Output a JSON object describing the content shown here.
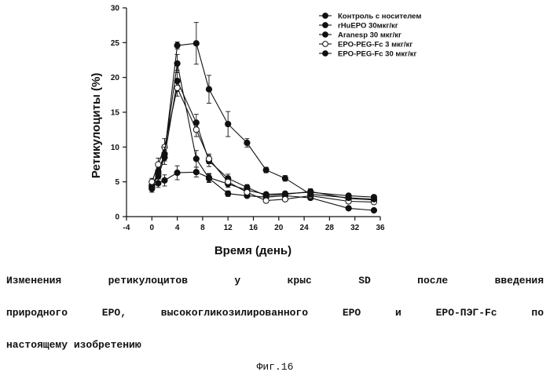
{
  "chart_data": {
    "type": "line",
    "xlabel": "Время (день)",
    "ylabel": "Ретикулоциты (%)",
    "xlim": [
      -4,
      36
    ],
    "ylim": [
      0,
      30
    ],
    "xticks": [
      -4,
      0,
      4,
      8,
      12,
      16,
      20,
      24,
      28,
      32,
      36
    ],
    "yticks": [
      0,
      5,
      10,
      15,
      20,
      25,
      30
    ],
    "legend_position": "top-right",
    "grid": false,
    "series": [
      {
        "name": "Контроль с носителем",
        "marker": "filled-circle",
        "x": [
          0,
          1,
          2,
          4,
          7,
          9,
          12,
          15,
          18,
          21,
          25,
          31,
          35
        ],
        "y": [
          4.3,
          4.8,
          5.2,
          6.3,
          6.4,
          5.6,
          4.7,
          3.8,
          3.2,
          3.3,
          3.5,
          3.0,
          2.8
        ],
        "err": [
          0.5,
          0.6,
          0.8,
          1.0,
          0.7,
          0.6,
          0.5,
          0.4,
          0.3,
          0.3,
          0.4,
          0.3,
          0.3
        ]
      },
      {
        "name": "rHuEPO 30мкг/кг",
        "marker": "filled-circle",
        "x": [
          0,
          1,
          2,
          4,
          7,
          9,
          12,
          15,
          18,
          21,
          25,
          31,
          35
        ],
        "y": [
          4.5,
          5.8,
          8.5,
          19.5,
          13.5,
          8.0,
          5.5,
          4.2,
          3.0,
          3.2,
          3.6,
          2.6,
          2.4
        ],
        "err": [
          0.4,
          0.8,
          1.0,
          1.5,
          1.2,
          0.8,
          0.6,
          0.4,
          0.3,
          0.3,
          0.4,
          0.3,
          0.3
        ]
      },
      {
        "name": "Aranesp 30 мкг/кг",
        "marker": "filled-circle",
        "x": [
          0,
          1,
          2,
          4,
          7,
          9,
          12,
          15,
          18,
          21,
          25,
          31,
          35
        ],
        "y": [
          4.2,
          6.5,
          9.0,
          22.0,
          8.3,
          5.5,
          3.3,
          3.0,
          2.8,
          3.0,
          2.7,
          1.2,
          0.9
        ],
        "err": [
          0.4,
          0.9,
          1.0,
          1.3,
          1.2,
          0.6,
          0.4,
          0.3,
          0.3,
          0.3,
          0.3,
          0.2,
          0.2
        ]
      },
      {
        "name": "EPO-PEG-Fc 3 мкг/кг",
        "marker": "open-circle",
        "x": [
          0,
          1,
          2,
          4,
          7,
          9,
          12,
          15,
          18,
          21,
          25,
          31,
          35
        ],
        "y": [
          5.0,
          7.5,
          10.0,
          18.5,
          12.5,
          8.3,
          5.0,
          3.5,
          2.3,
          2.5,
          3.0,
          2.2,
          2.1
        ],
        "err": [
          0.5,
          0.9,
          1.2,
          1.2,
          1.0,
          0.7,
          0.5,
          0.4,
          0.3,
          0.3,
          0.3,
          0.3,
          0.3
        ]
      },
      {
        "name": "EPO-PEG-Fc 30 мкг/кг",
        "marker": "filled-circle",
        "x": [
          0,
          1,
          2,
          4,
          7,
          9,
          12,
          15,
          18,
          21,
          25,
          31,
          35
        ],
        "y": [
          4.0,
          6.2,
          9.0,
          24.6,
          24.9,
          18.3,
          13.3,
          10.6,
          6.7,
          5.5,
          3.2,
          2.7,
          2.5
        ],
        "err": [
          0.5,
          0.8,
          1.0,
          0.5,
          3.0,
          2.0,
          1.8,
          0.6,
          0.4,
          0.4,
          0.4,
          0.3,
          0.3
        ]
      }
    ]
  },
  "caption": {
    "line1": "Изменения ретикулоцитов у крыс SD после введения",
    "line2": "природного ЕРО, высокогликозилированного ЕРО и ЕРО-ПЭГ-Fc по",
    "line3": "настоящему изобретению"
  },
  "figure_label": "Фиг.16"
}
